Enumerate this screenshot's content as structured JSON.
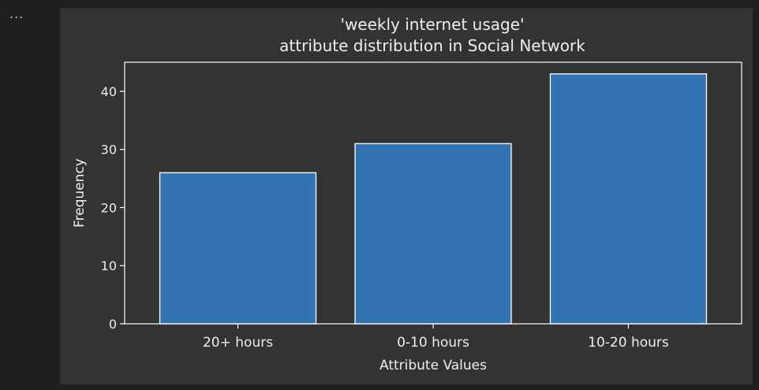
{
  "cell": {
    "menu_glyph": "..."
  },
  "colors": {
    "bar_fill": "#3274b1",
    "bar_edge": "#ffffff",
    "axes": "#ffffff",
    "text": "#eeeeee",
    "panel_bg": "#333333",
    "page_bg": "#1f1f1f"
  },
  "chart_data": {
    "type": "bar",
    "title_line1": "'weekly internet usage'",
    "title_line2": "attribute distribution in Social Network",
    "xlabel": "Attribute Values",
    "ylabel": "Frequency",
    "categories": [
      "20+ hours",
      "0-10 hours",
      "10-20 hours"
    ],
    "values": [
      26,
      31,
      43
    ],
    "ylim": [
      0,
      45
    ],
    "yticks": [
      0,
      10,
      20,
      30,
      40
    ],
    "grid": false,
    "legend": "none"
  }
}
